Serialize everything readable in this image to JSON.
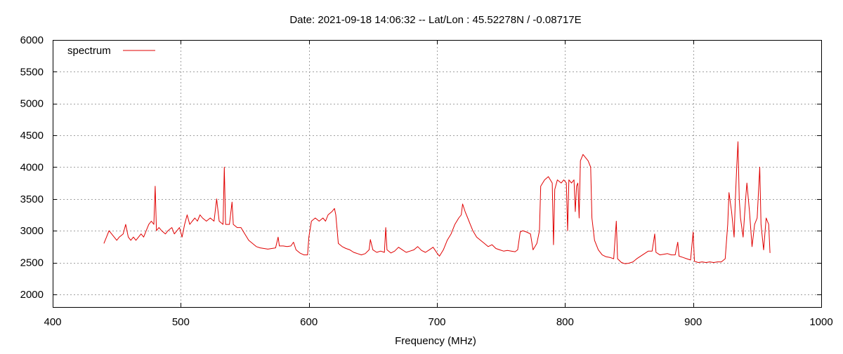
{
  "chart_data": {
    "type": "line",
    "title": "Date: 2021-09-18 14:06:32  --  Lat/Lon : 45.52278N / -0.08717E",
    "xlabel": "Frequency (MHz)",
    "ylabel": "",
    "xlim": [
      400,
      1000
    ],
    "ylim": [
      1800,
      6000
    ],
    "x_ticks": [
      400,
      500,
      600,
      700,
      800,
      900,
      1000
    ],
    "y_ticks": [
      2000,
      2500,
      3000,
      3500,
      4000,
      4500,
      5000,
      5500,
      6000
    ],
    "grid": true,
    "legend_position": "top-left",
    "series_color": "#e00000",
    "series": [
      {
        "name": "spectrum",
        "points": [
          [
            440,
            2800
          ],
          [
            442,
            2900
          ],
          [
            444,
            3000
          ],
          [
            446,
            2950
          ],
          [
            448,
            2900
          ],
          [
            450,
            2850
          ],
          [
            452,
            2900
          ],
          [
            455,
            2950
          ],
          [
            457,
            3100
          ],
          [
            459,
            2900
          ],
          [
            461,
            2850
          ],
          [
            463,
            2900
          ],
          [
            465,
            2850
          ],
          [
            467,
            2900
          ],
          [
            469,
            2950
          ],
          [
            471,
            2900
          ],
          [
            473,
            3000
          ],
          [
            475,
            3100
          ],
          [
            477,
            3150
          ],
          [
            479,
            3100
          ],
          [
            480,
            3700
          ],
          [
            481,
            3000
          ],
          [
            483,
            3050
          ],
          [
            485,
            3000
          ],
          [
            488,
            2950
          ],
          [
            490,
            3000
          ],
          [
            493,
            3050
          ],
          [
            495,
            2950
          ],
          [
            497,
            3000
          ],
          [
            499,
            3050
          ],
          [
            501,
            2900
          ],
          [
            503,
            3100
          ],
          [
            505,
            3250
          ],
          [
            507,
            3100
          ],
          [
            509,
            3150
          ],
          [
            511,
            3200
          ],
          [
            513,
            3150
          ],
          [
            515,
            3250
          ],
          [
            517,
            3200
          ],
          [
            520,
            3150
          ],
          [
            523,
            3200
          ],
          [
            526,
            3150
          ],
          [
            528,
            3500
          ],
          [
            530,
            3150
          ],
          [
            533,
            3100
          ],
          [
            534,
            4000
          ],
          [
            535,
            3100
          ],
          [
            538,
            3100
          ],
          [
            540,
            3450
          ],
          [
            541,
            3100
          ],
          [
            544,
            3050
          ],
          [
            547,
            3050
          ],
          [
            550,
            2950
          ],
          [
            553,
            2850
          ],
          [
            556,
            2800
          ],
          [
            559,
            2750
          ],
          [
            562,
            2730
          ],
          [
            565,
            2720
          ],
          [
            568,
            2710
          ],
          [
            571,
            2720
          ],
          [
            574,
            2730
          ],
          [
            576,
            2900
          ],
          [
            577,
            2760
          ],
          [
            580,
            2760
          ],
          [
            583,
            2750
          ],
          [
            586,
            2760
          ],
          [
            588,
            2820
          ],
          [
            590,
            2700
          ],
          [
            593,
            2650
          ],
          [
            596,
            2620
          ],
          [
            599,
            2620
          ],
          [
            600,
            2900
          ],
          [
            602,
            3150
          ],
          [
            605,
            3200
          ],
          [
            608,
            3150
          ],
          [
            611,
            3200
          ],
          [
            613,
            3150
          ],
          [
            615,
            3250
          ],
          [
            618,
            3300
          ],
          [
            620,
            3350
          ],
          [
            621,
            3250
          ],
          [
            623,
            2800
          ],
          [
            626,
            2750
          ],
          [
            629,
            2720
          ],
          [
            632,
            2700
          ],
          [
            635,
            2660
          ],
          [
            638,
            2640
          ],
          [
            641,
            2620
          ],
          [
            644,
            2640
          ],
          [
            647,
            2700
          ],
          [
            648,
            2860
          ],
          [
            650,
            2700
          ],
          [
            653,
            2660
          ],
          [
            656,
            2680
          ],
          [
            659,
            2660
          ],
          [
            660,
            3050
          ],
          [
            661,
            2700
          ],
          [
            664,
            2650
          ],
          [
            667,
            2680
          ],
          [
            670,
            2740
          ],
          [
            673,
            2700
          ],
          [
            676,
            2660
          ],
          [
            679,
            2680
          ],
          [
            682,
            2700
          ],
          [
            685,
            2750
          ],
          [
            688,
            2690
          ],
          [
            691,
            2660
          ],
          [
            694,
            2700
          ],
          [
            697,
            2740
          ],
          [
            700,
            2650
          ],
          [
            702,
            2600
          ],
          [
            705,
            2700
          ],
          [
            708,
            2850
          ],
          [
            711,
            2950
          ],
          [
            714,
            3100
          ],
          [
            717,
            3200
          ],
          [
            719,
            3250
          ],
          [
            720,
            3420
          ],
          [
            722,
            3300
          ],
          [
            724,
            3200
          ],
          [
            726,
            3100
          ],
          [
            728,
            3000
          ],
          [
            731,
            2900
          ],
          [
            734,
            2850
          ],
          [
            737,
            2800
          ],
          [
            740,
            2750
          ],
          [
            743,
            2780
          ],
          [
            746,
            2720
          ],
          [
            749,
            2700
          ],
          [
            752,
            2680
          ],
          [
            755,
            2690
          ],
          [
            758,
            2680
          ],
          [
            761,
            2670
          ],
          [
            763,
            2700
          ],
          [
            765,
            2980
          ],
          [
            767,
            3000
          ],
          [
            770,
            2980
          ],
          [
            773,
            2950
          ],
          [
            775,
            2700
          ],
          [
            778,
            2800
          ],
          [
            780,
            3000
          ],
          [
            781,
            3700
          ],
          [
            784,
            3800
          ],
          [
            787,
            3850
          ],
          [
            790,
            3750
          ],
          [
            791,
            2780
          ],
          [
            792,
            3650
          ],
          [
            794,
            3800
          ],
          [
            797,
            3750
          ],
          [
            799,
            3800
          ],
          [
            801,
            3750
          ],
          [
            802,
            3000
          ],
          [
            803,
            3800
          ],
          [
            805,
            3750
          ],
          [
            807,
            3800
          ],
          [
            808,
            3300
          ],
          [
            809,
            3700
          ],
          [
            810,
            3750
          ],
          [
            811,
            3200
          ],
          [
            812,
            4100
          ],
          [
            814,
            4200
          ],
          [
            816,
            4150
          ],
          [
            818,
            4100
          ],
          [
            820,
            4000
          ],
          [
            821,
            3200
          ],
          [
            823,
            2850
          ],
          [
            826,
            2700
          ],
          [
            829,
            2620
          ],
          [
            832,
            2590
          ],
          [
            835,
            2580
          ],
          [
            838,
            2560
          ],
          [
            840,
            3150
          ],
          [
            841,
            2560
          ],
          [
            844,
            2500
          ],
          [
            847,
            2480
          ],
          [
            850,
            2490
          ],
          [
            853,
            2510
          ],
          [
            856,
            2560
          ],
          [
            859,
            2600
          ],
          [
            862,
            2640
          ],
          [
            865,
            2680
          ],
          [
            868,
            2680
          ],
          [
            870,
            2950
          ],
          [
            871,
            2660
          ],
          [
            874,
            2620
          ],
          [
            877,
            2630
          ],
          [
            880,
            2640
          ],
          [
            883,
            2620
          ],
          [
            886,
            2620
          ],
          [
            888,
            2820
          ],
          [
            889,
            2600
          ],
          [
            892,
            2580
          ],
          [
            895,
            2560
          ],
          [
            898,
            2540
          ],
          [
            900,
            2980
          ],
          [
            901,
            2520
          ],
          [
            904,
            2500
          ],
          [
            907,
            2510
          ],
          [
            910,
            2500
          ],
          [
            913,
            2510
          ],
          [
            916,
            2500
          ],
          [
            919,
            2510
          ],
          [
            922,
            2510
          ],
          [
            925,
            2560
          ],
          [
            927,
            3100
          ],
          [
            928,
            3600
          ],
          [
            930,
            3300
          ],
          [
            932,
            2900
          ],
          [
            933,
            3500
          ],
          [
            934,
            4000
          ],
          [
            935,
            4400
          ],
          [
            936,
            3500
          ],
          [
            937,
            3200
          ],
          [
            939,
            2900
          ],
          [
            941,
            3500
          ],
          [
            942,
            3750
          ],
          [
            944,
            3300
          ],
          [
            946,
            2750
          ],
          [
            948,
            3100
          ],
          [
            950,
            3200
          ],
          [
            952,
            4000
          ],
          [
            953,
            3100
          ],
          [
            955,
            2700
          ],
          [
            957,
            3200
          ],
          [
            959,
            3100
          ],
          [
            960,
            2650
          ]
        ]
      }
    ]
  }
}
